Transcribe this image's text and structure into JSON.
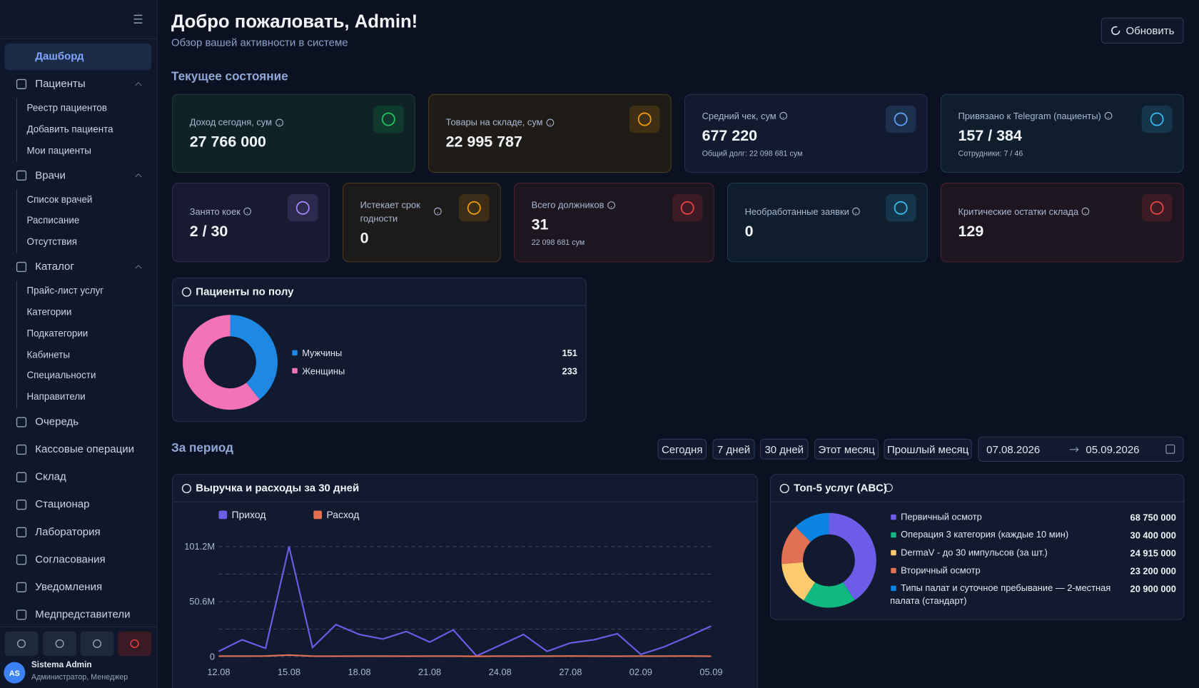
{
  "sidebar": {
    "nav": [
      {
        "label": "Дашборд"
      },
      {
        "label": "Пациенты",
        "children": [
          "Реестр пациентов",
          "Добавить пациента",
          "Мои пациенты"
        ]
      },
      {
        "label": "Врачи",
        "children": [
          "Список врачей",
          "Расписание",
          "Отсутствия"
        ]
      },
      {
        "label": "Каталог",
        "children": [
          "Прайс-лист услуг",
          "Категории",
          "Подкатегории",
          "Кабинеты",
          "Специальности",
          "Направители"
        ]
      },
      {
        "label": "Очередь"
      },
      {
        "label": "Кассовые операции"
      },
      {
        "label": "Склад"
      },
      {
        "label": "Стационар"
      },
      {
        "label": "Лаборатория"
      },
      {
        "label": "Согласования"
      },
      {
        "label": "Уведомления"
      },
      {
        "label": "Медпредставители"
      }
    ],
    "user": {
      "initials": "AS",
      "name": "Sistema Admin",
      "role": "Администратор, Менеджер"
    }
  },
  "header": {
    "title": "Добро пожаловать, Admin!",
    "subtitle": "Обзор вашей активности в системе",
    "refresh": "Обновить"
  },
  "current": {
    "title": "Текущее состояние",
    "cards": [
      {
        "label": "Доход сегодня, сум",
        "value": "27 766 000"
      },
      {
        "label": "Товары на складе, сум",
        "value": "22 995 787"
      },
      {
        "label": "Средний чек, сум",
        "value": "677 220",
        "note": "Общий долг: 22 098 681 сум"
      },
      {
        "label": "Привязано к Telegram (пациенты)",
        "value": "157 / 384",
        "note": "Сотрудники: 7 / 46"
      },
      {
        "label": "Занято коек",
        "value": "2 / 30"
      },
      {
        "label": "Истекает срок годности",
        "value": "0"
      },
      {
        "label": "Всего должников",
        "value": "31",
        "note": "22 098 681 сум"
      },
      {
        "label": "Необработанные заявки",
        "value": "0"
      },
      {
        "label": "Критические остатки склада",
        "value": "129"
      }
    ]
  },
  "gender_chart": {
    "type": "pie",
    "title": "Пациенты по полу",
    "categories": [
      "Мужчины",
      "Женщины"
    ],
    "values": [
      151,
      233
    ],
    "colors": [
      "#1e88e5",
      "#f472b6"
    ]
  },
  "period": {
    "title": "За период",
    "filters": [
      "Сегодня",
      "7 дней",
      "30 дней",
      "Этот месяц",
      "Прошлый месяц"
    ],
    "date_from": "07.08.2026",
    "date_to": "05.09.2026"
  },
  "revenue_chart": {
    "type": "line",
    "title": "Выручка и расходы за 30 дней",
    "categories": [
      "12.08",
      null,
      null,
      "15.08",
      null,
      null,
      "18.08",
      null,
      null,
      "21.08",
      null,
      null,
      "24.08",
      null,
      null,
      "27.08",
      null,
      null,
      "02.09",
      null,
      null,
      "05.09"
    ],
    "series": [
      {
        "name": "Приход",
        "color": "#6c5ce7",
        "values": [
          4.9,
          15.5,
          7.7,
          101.2,
          8.4,
          29.5,
          20.4,
          16.2,
          23.2,
          13.4,
          24.6,
          0.7,
          10.5,
          20.4,
          4.9,
          12.6,
          15.5,
          21.1,
          2.1,
          9.1,
          18.3,
          28.1
        ]
      },
      {
        "name": "Расход",
        "color": "#e17055",
        "values": [
          0.5,
          0.5,
          0.6,
          1.5,
          0.5,
          0.4,
          0.5,
          0.5,
          0.4,
          0.5,
          0.5,
          0.3,
          0.5,
          0.4,
          0.5,
          0.6,
          0.5,
          0.4,
          0.5,
          0.5,
          0.6,
          0.4
        ]
      }
    ],
    "ylim": [
      0,
      101.2
    ],
    "yticks": [
      0,
      {
        "value": 50.6,
        "label": "50.6M"
      },
      {
        "value": 101.2,
        "label": "101.2M"
      }
    ],
    "minor_ticks": [
      25.3,
      75.9
    ],
    "grid": true
  },
  "top_services": {
    "type": "pie",
    "title": "Топ-5 услуг (ABC)",
    "categories": [
      "Первичный осмотр",
      "Операция 3 категория (каждые 10 мин)",
      "DermaV - до 30 импульсов (за шт.)",
      "Вторичный осмотр",
      "Типы палат и суточное пребывание — 2-местная палата (стандарт)"
    ],
    "values": [
      68750000,
      30400000,
      24915000,
      23200000,
      20900000
    ],
    "value_labels": [
      "68 750 000",
      "30 400 000",
      "24 915 000",
      "23 200 000",
      "20 900 000"
    ],
    "colors": [
      "#6c5ce7",
      "#10b981",
      "#fdcb6e",
      "#e17055",
      "#0984e3"
    ]
  }
}
